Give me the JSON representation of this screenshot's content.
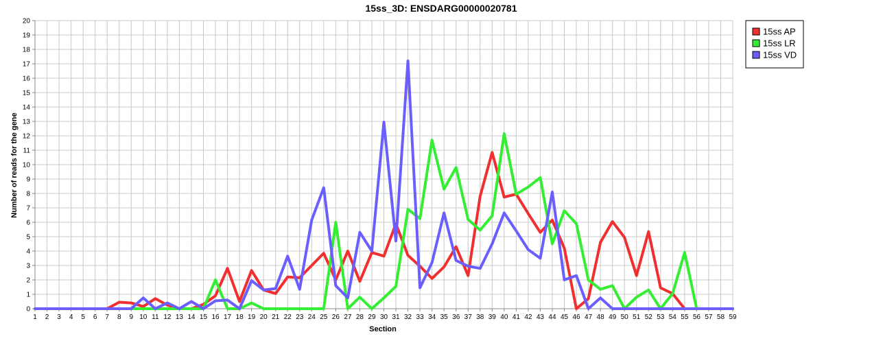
{
  "chart_data": {
    "type": "line",
    "title": "15ss_3D: ENSDARG00000020781",
    "xlabel": "Section",
    "ylabel": "Number of reads for the gene",
    "xlim": [
      1,
      59
    ],
    "ylim": [
      0,
      20
    ],
    "x": [
      1,
      2,
      3,
      4,
      5,
      6,
      7,
      8,
      9,
      10,
      11,
      12,
      13,
      14,
      15,
      16,
      17,
      18,
      19,
      20,
      21,
      22,
      23,
      24,
      25,
      26,
      27,
      28,
      29,
      30,
      31,
      32,
      33,
      34,
      35,
      36,
      37,
      38,
      39,
      40,
      41,
      42,
      43,
      44,
      45,
      46,
      47,
      48,
      49,
      50,
      51,
      52,
      53,
      54,
      55,
      56,
      57,
      58,
      59
    ],
    "x_ticks": [
      "1",
      "2",
      "3",
      "4",
      "5",
      "6",
      "7",
      "8",
      "9",
      "10",
      "11",
      "12",
      "13",
      "14",
      "15",
      "16",
      "17",
      "18",
      "19",
      "20",
      "21",
      "22",
      "23",
      "24",
      "25",
      "26",
      "27",
      "28",
      "29",
      "30",
      "31",
      "32",
      "33",
      "34",
      "35",
      "36",
      "37",
      "38",
      "39",
      "40",
      "41",
      "42",
      "43",
      "44",
      "45",
      "46",
      "47",
      "48",
      "49",
      "50",
      "51",
      "52",
      "53",
      "54",
      "55",
      "56",
      "57",
      "58",
      "59"
    ],
    "y_ticks": [
      "0",
      "1",
      "2",
      "3",
      "4",
      "5",
      "6",
      "7",
      "8",
      "9",
      "10",
      "11",
      "12",
      "13",
      "14",
      "15",
      "16",
      "17",
      "18",
      "19",
      "20"
    ],
    "grid": true,
    "legend_position": "top-right",
    "series": [
      {
        "name": "15ss AP",
        "color": "#f03030",
        "values": [
          0,
          0,
          0,
          0,
          0,
          0,
          0,
          0.45,
          0.4,
          0.15,
          0.7,
          0.25,
          0,
          0,
          0.3,
          0.9,
          2.8,
          0.5,
          2.65,
          1.3,
          1.05,
          2.2,
          2.15,
          3,
          3.85,
          2,
          4,
          1.9,
          3.9,
          3.65,
          5.9,
          3.7,
          2.95,
          2.1,
          2.9,
          4.3,
          2.3,
          7.8,
          10.85,
          7.75,
          7.95,
          6.6,
          5.3,
          6.15,
          4.2,
          0,
          0.7,
          4.6,
          6.05,
          4.95,
          2.3,
          5.35,
          1.45,
          1.05,
          0,
          0,
          0,
          0,
          0
        ]
      },
      {
        "name": "15ss LR",
        "color": "#33ee33",
        "values": [
          0,
          0,
          0,
          0,
          0,
          0,
          0,
          0,
          0,
          0,
          0,
          0,
          0,
          0,
          0,
          2,
          0,
          0,
          0.4,
          0,
          0,
          0,
          0,
          0,
          0,
          6,
          0,
          0.8,
          0,
          0.75,
          1.55,
          6.9,
          6.25,
          11.7,
          8.3,
          9.8,
          6.2,
          5.45,
          6.45,
          12.15,
          7.95,
          8.45,
          9.1,
          4.5,
          6.8,
          5.9,
          2,
          1.35,
          1.6,
          0,
          0.8,
          1.3,
          0,
          1.05,
          3.9,
          0,
          0,
          0,
          0
        ]
      },
      {
        "name": "15ss VD",
        "color": "#6a5eff",
        "values": [
          0,
          0,
          0,
          0,
          0,
          0,
          0,
          0,
          0,
          0.75,
          0,
          0.4,
          0,
          0.5,
          0,
          0.55,
          0.6,
          0,
          1.95,
          1.3,
          1.4,
          3.65,
          1.35,
          6.15,
          8.4,
          1.6,
          0.75,
          5.3,
          4,
          12.95,
          4.7,
          17.2,
          1.45,
          3.2,
          6.65,
          3.35,
          2.95,
          2.8,
          4.5,
          6.65,
          5.4,
          4.1,
          3.5,
          8.1,
          2,
          2.3,
          0,
          0.75,
          0,
          0,
          0,
          0,
          0,
          0,
          0,
          0,
          0,
          0,
          0
        ]
      }
    ]
  }
}
